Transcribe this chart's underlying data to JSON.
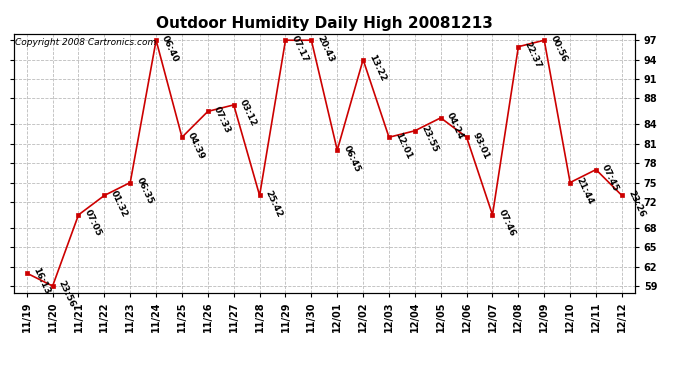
{
  "title": "Outdoor Humidity Daily High 20081213",
  "copyright": "Copyright 2008 Cartronics.com",
  "x_labels": [
    "11/19",
    "11/20",
    "11/21",
    "11/22",
    "11/23",
    "11/24",
    "11/25",
    "11/26",
    "11/27",
    "11/28",
    "11/29",
    "11/30",
    "12/01",
    "12/02",
    "12/03",
    "12/04",
    "12/05",
    "12/06",
    "12/07",
    "12/08",
    "12/09",
    "12/10",
    "12/11",
    "12/12"
  ],
  "y_values": [
    61,
    59,
    70,
    73,
    75,
    97,
    82,
    86,
    87,
    73,
    97,
    97,
    80,
    94,
    82,
    83,
    85,
    82,
    70,
    96,
    97,
    75,
    77,
    73
  ],
  "point_labels": [
    "16:13",
    "23:56",
    "07:05",
    "01:32",
    "06:35",
    "06:40",
    "04:39",
    "07:33",
    "03:12",
    "25:42",
    "07:17",
    "20:43",
    "06:45",
    "13:22",
    "12:01",
    "23:55",
    "04:24",
    "93:01",
    "07:46",
    "22:37",
    "00:56",
    "21:44",
    "07:45",
    "23:26"
  ],
  "ylim_min": 58,
  "ylim_max": 98,
  "yticks": [
    59,
    62,
    65,
    68,
    72,
    75,
    78,
    81,
    84,
    88,
    91,
    94,
    97
  ],
  "line_color": "#cc0000",
  "marker_color": "#cc0000",
  "bg_color": "#ffffff",
  "grid_color": "#bbbbbb",
  "title_fontsize": 11,
  "label_fontsize": 6.5,
  "tick_fontsize": 7,
  "copyright_fontsize": 6.5
}
